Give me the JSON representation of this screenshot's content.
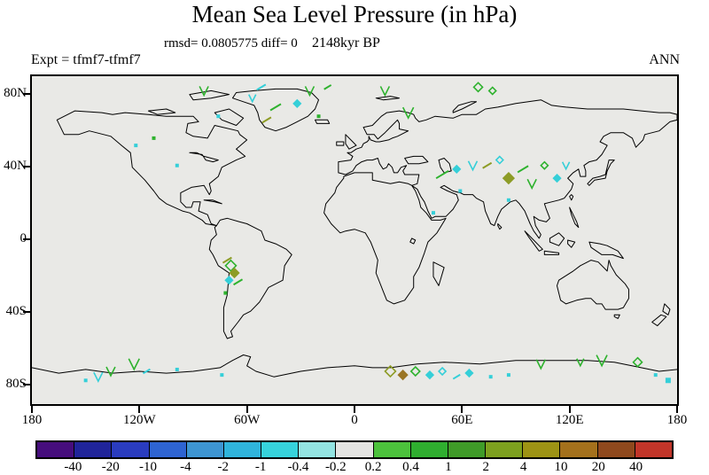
{
  "title": "Mean Sea Level Pressure (in hPa)",
  "annotations": {
    "stats": "rmsd= 0.0805775 diff= 0",
    "time": "2148kyr BP",
    "experiment": "Expt = tfmf7-tfmf7",
    "season": "ANN"
  },
  "chart_data": {
    "type": "scatter",
    "subtype": "global-map-difference-plot",
    "title": "Mean Sea Level Pressure (in hPa)",
    "projection": "equirectangular",
    "x_range": [
      -180,
      180
    ],
    "y_range": [
      -90,
      90
    ],
    "grid": false,
    "map_background": "#e9e9e6",
    "lon_ticks": {
      "deg": [
        -180,
        -120,
        -60,
        0,
        60,
        120,
        180
      ],
      "labels": [
        "180",
        "120W",
        "60W",
        "0",
        "60E",
        "120E",
        "180"
      ]
    },
    "lat_ticks": {
      "deg": [
        80,
        40,
        0,
        -40,
        -80
      ],
      "labels": [
        "80N",
        "40N",
        "0",
        "40S",
        "80S"
      ]
    },
    "colorbar": {
      "position": "bottom",
      "levels": [
        -40,
        -20,
        -10,
        -4,
        -2,
        -1,
        -0.4,
        -0.2,
        0.2,
        0.4,
        1,
        2,
        4,
        10,
        20,
        40
      ],
      "boundary_labels": [
        "-40",
        "-20",
        "-10",
        "-4",
        "-2",
        "-1",
        "-0.4",
        "-0.2",
        "0.2",
        "0.4",
        "1",
        "2",
        "4",
        "10",
        "20",
        "40"
      ],
      "colors": [
        "#460d7d",
        "#20249a",
        "#2a3cc0",
        "#2e64d2",
        "#3d95d2",
        "#2fb4dc",
        "#36d3dc",
        "#93e4e2",
        "#e4e4e2",
        "#4cc23c",
        "#2fae2f",
        "#3f9b28",
        "#7da01e",
        "#9d9314",
        "#a4711c",
        "#8f491d",
        "#c23529"
      ]
    },
    "mark_colors": {
      "green": "#2eb22e",
      "cyan": "#35cfd8",
      "olive": "#8d9c26",
      "brown": "#9a7524"
    },
    "point_fields": [
      "lon",
      "lat",
      "color",
      "shape",
      "half_size_px"
    ],
    "points": [
      [
        -84,
        82,
        "green",
        "v",
        5
      ],
      [
        -52,
        84,
        "cyan",
        "l",
        5
      ],
      [
        -44,
        73,
        "green",
        "l",
        6
      ],
      [
        -32,
        75,
        "cyan",
        "f",
        4
      ],
      [
        -25,
        82,
        "green",
        "v",
        5
      ],
      [
        -15,
        84,
        "green",
        "l",
        4
      ],
      [
        -76,
        68,
        "cyan",
        "o",
        2
      ],
      [
        -49,
        66,
        "olive",
        "l",
        5
      ],
      [
        -57,
        78,
        "cyan",
        "v",
        4
      ],
      [
        -20,
        68,
        "green",
        "o",
        2
      ],
      [
        17,
        82,
        "green",
        "v",
        5
      ],
      [
        30,
        70,
        "green",
        "v",
        6
      ],
      [
        69,
        84,
        "green",
        "d",
        5
      ],
      [
        77,
        82,
        "green",
        "d",
        4
      ],
      [
        -112,
        56,
        "green",
        "o",
        2
      ],
      [
        -122,
        52,
        "cyan",
        "o",
        2
      ],
      [
        -99,
        41,
        "cyan",
        "o",
        2
      ],
      [
        49,
        36,
        "green",
        "l",
        7
      ],
      [
        57,
        39,
        "cyan",
        "f",
        4
      ],
      [
        66,
        41,
        "cyan",
        "v",
        5
      ],
      [
        74,
        41,
        "olive",
        "l",
        5
      ],
      [
        81,
        44,
        "cyan",
        "d",
        4
      ],
      [
        86,
        34,
        "olive",
        "f",
        6
      ],
      [
        94,
        39,
        "green",
        "l",
        6
      ],
      [
        99,
        31,
        "green",
        "v",
        5
      ],
      [
        106,
        41,
        "green",
        "d",
        4
      ],
      [
        113,
        34,
        "cyan",
        "f",
        4
      ],
      [
        118,
        41,
        "cyan",
        "v",
        4
      ],
      [
        59,
        27,
        "cyan",
        "o",
        2
      ],
      [
        86,
        22,
        "cyan",
        "o",
        2
      ],
      [
        44,
        15,
        "cyan",
        "o",
        2
      ],
      [
        -71,
        -11,
        "olive",
        "l",
        5
      ],
      [
        -69,
        -14,
        "green",
        "d",
        6
      ],
      [
        -67,
        -18,
        "olive",
        "f",
        5
      ],
      [
        -70,
        -22,
        "cyan",
        "f",
        4
      ],
      [
        -65,
        -23,
        "green",
        "l",
        5
      ],
      [
        -72,
        -29,
        "green",
        "o",
        2
      ],
      [
        -150,
        -77,
        "cyan",
        "o",
        2
      ],
      [
        -143,
        -75,
        "cyan",
        "v",
        5
      ],
      [
        -136,
        -72,
        "green",
        "v",
        5
      ],
      [
        -123,
        -68,
        "green",
        "v",
        6
      ],
      [
        -116,
        -72,
        "cyan",
        "l",
        4
      ],
      [
        -99,
        -71,
        "cyan",
        "o",
        2
      ],
      [
        -74,
        -74,
        "cyan",
        "o",
        2
      ],
      [
        20,
        -72,
        "olive",
        "d",
        6
      ],
      [
        27,
        -74,
        "brown",
        "f",
        5
      ],
      [
        34,
        -72,
        "green",
        "d",
        5
      ],
      [
        42,
        -74,
        "cyan",
        "f",
        4
      ],
      [
        49,
        -72,
        "cyan",
        "d",
        4
      ],
      [
        57,
        -75,
        "cyan",
        "l",
        4
      ],
      [
        64,
        -73,
        "cyan",
        "f",
        4
      ],
      [
        76,
        -75,
        "cyan",
        "o",
        2
      ],
      [
        86,
        -74,
        "cyan",
        "o",
        2
      ],
      [
        104,
        -68,
        "green",
        "v",
        5
      ],
      [
        126,
        -67,
        "green",
        "v",
        4
      ],
      [
        138,
        -66,
        "green",
        "v",
        6
      ],
      [
        158,
        -67,
        "green",
        "d",
        5
      ],
      [
        168,
        -74,
        "cyan",
        "o",
        2
      ],
      [
        175,
        -77,
        "cyan",
        "o",
        3
      ]
    ]
  }
}
